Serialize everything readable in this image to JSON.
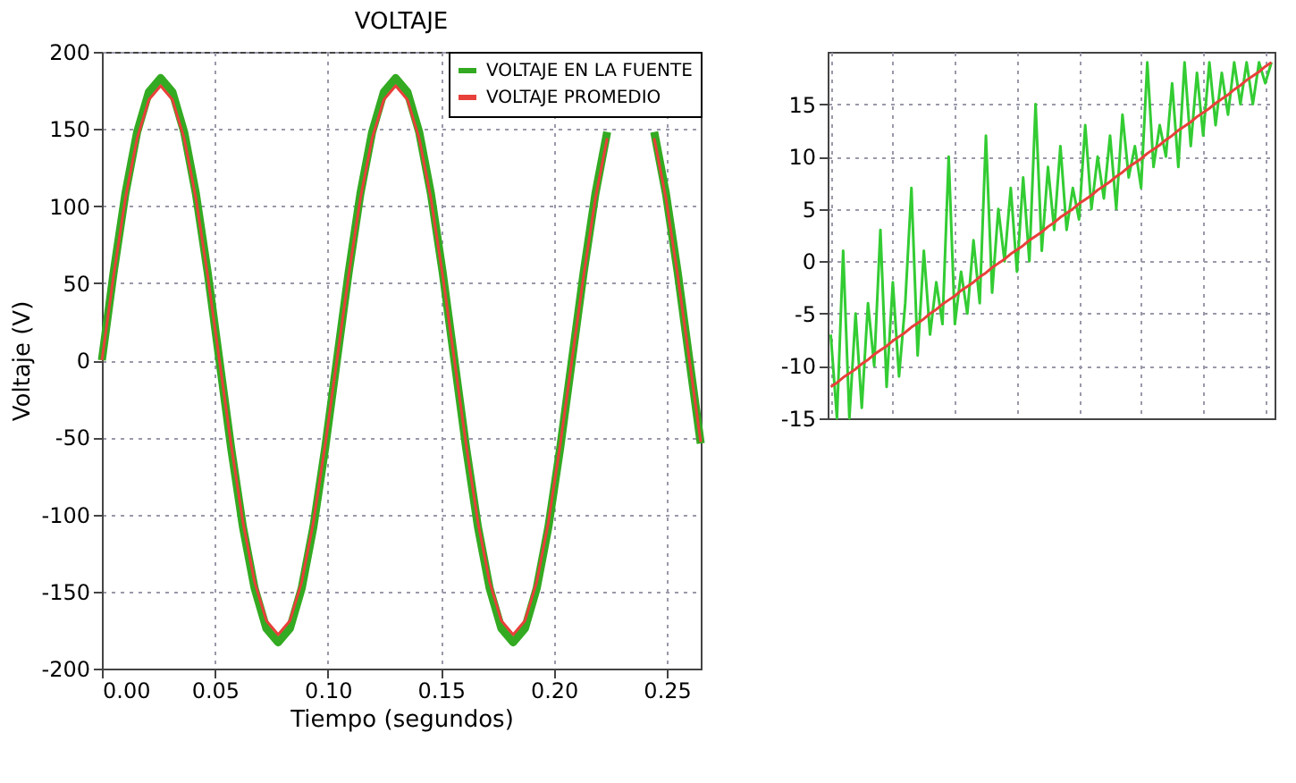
{
  "chart_data": [
    {
      "type": "line",
      "title": "VOLTAJE",
      "xlabel": "Tiempo (segundos)",
      "ylabel": "Voltaje (V)",
      "x": [
        0,
        0.0052,
        0.0104,
        0.0156,
        0.0208,
        0.026,
        0.0312,
        0.0364,
        0.0416,
        0.0468,
        0.052,
        0.0572,
        0.0624,
        0.0676,
        0.0728,
        0.078,
        0.0832,
        0.0884,
        0.0936,
        0.0988,
        0.104,
        0.1092,
        0.1144,
        0.1196,
        0.1248,
        0.13,
        0.1352,
        0.1404,
        0.1456,
        0.1508,
        0.156,
        0.1612,
        0.1664,
        0.1716,
        0.1768,
        0.182,
        0.1872,
        0.1924,
        0.1976,
        0.2028,
        0.208,
        0.2132,
        0.2184,
        0.2236,
        0.2288,
        0.234,
        0.2392,
        0.2444,
        0.2496,
        0.2548,
        0.26,
        0.265
      ],
      "series": [
        {
          "name": "VOLTAJE EN LA FUENTE",
          "color": "#33aa22",
          "values": [
            0,
            57,
            108,
            148,
            174,
            183,
            174,
            148,
            108,
            57,
            0,
            -57,
            -108,
            -148,
            -174,
            -183,
            -174,
            -148,
            -108,
            -57,
            0,
            57,
            108,
            148,
            174,
            183,
            174,
            148,
            108,
            57,
            0,
            -57,
            -108,
            -148,
            -174,
            -183,
            -174,
            -148,
            -108,
            -57,
            0,
            57,
            108,
            148,
            null,
            null,
            null,
            148,
            108,
            57,
            0,
            -54
          ]
        },
        {
          "name": "VOLTAJE PROMEDIO",
          "color": "#e8403a",
          "values": [
            0,
            55,
            105,
            144,
            169,
            178,
            169,
            144,
            105,
            55,
            0,
            -55,
            -105,
            -144,
            -169,
            -178,
            -169,
            -144,
            -105,
            -55,
            0,
            55,
            105,
            144,
            169,
            178,
            169,
            144,
            105,
            55,
            0,
            -55,
            -105,
            -144,
            -169,
            -178,
            -169,
            -144,
            -105,
            -55,
            0,
            55,
            105,
            144,
            null,
            null,
            null,
            144,
            105,
            55,
            0,
            -53
          ]
        }
      ],
      "xlim": [
        0,
        0.265
      ],
      "xticks": [
        {
          "value": 0,
          "label": "0.00"
        },
        {
          "value": 0.05,
          "label": "0.05"
        },
        {
          "value": 0.1,
          "label": "0.10"
        },
        {
          "value": 0.15,
          "label": "0.15"
        },
        {
          "value": 0.2,
          "label": "0.20"
        },
        {
          "value": 0.25,
          "label": "0.25"
        }
      ],
      "ylim": [
        -200,
        200
      ],
      "yticks": [
        -200,
        -150,
        -100,
        -50,
        0,
        50,
        100,
        150,
        200
      ],
      "grid": true,
      "legend": "top right",
      "line_style": "solid",
      "marker": "none"
    },
    {
      "type": "line",
      "categories": [
        null,
        null,
        null,
        null,
        null,
        null,
        null,
        null,
        null,
        null,
        null,
        null,
        null,
        null,
        null,
        null,
        null,
        null,
        null,
        null,
        null,
        null,
        null,
        null,
        null,
        null,
        null,
        null,
        null,
        null,
        null,
        null,
        null,
        null,
        null,
        null,
        null,
        null,
        null,
        null,
        null,
        null,
        null,
        null,
        null,
        null,
        null,
        null,
        null,
        null,
        null,
        null,
        null,
        null,
        null,
        null,
        null,
        null,
        null,
        null,
        null,
        null,
        null,
        null,
        null,
        null,
        null,
        null,
        null,
        null,
        null,
        null
      ],
      "series": [
        {
          "color": "#33cc33",
          "values": [
            -7,
            -15,
            1,
            -15,
            -5,
            -14,
            -4,
            -10,
            3,
            -12,
            -2,
            -11,
            -4,
            7,
            -9,
            1,
            -7,
            -2,
            -6,
            10,
            -6,
            -1,
            -5,
            2,
            -4,
            12,
            -3,
            5,
            0,
            7,
            -1,
            8,
            0,
            15,
            1,
            9,
            3,
            11,
            3,
            7,
            4,
            13,
            5,
            10,
            6,
            12,
            5,
            14,
            8,
            11,
            7,
            19,
            9,
            13,
            10,
            17,
            9,
            19,
            11,
            18,
            12,
            19,
            13,
            18,
            14,
            19,
            15,
            19,
            15,
            19,
            17,
            19
          ]
        },
        {
          "color": "#e8403a",
          "values": [
            -12,
            -11.6,
            -11.1,
            -10.7,
            -10.3,
            -9.8,
            -9.4,
            -8.9,
            -8.5,
            -8.1,
            -7.6,
            -7.2,
            -6.8,
            -6.3,
            -5.9,
            -5.5,
            -5.0,
            -4.6,
            -4.1,
            -3.7,
            -3.3,
            -2.8,
            -2.4,
            -2.0,
            -1.5,
            -1.1,
            -0.6,
            -0.2,
            0.2,
            0.7,
            1.1,
            1.5,
            2.0,
            2.4,
            2.8,
            3.3,
            3.7,
            4.2,
            4.6,
            5.0,
            5.5,
            5.9,
            6.3,
            6.8,
            7.2,
            7.6,
            8.1,
            8.5,
            9.0,
            9.4,
            9.8,
            10.3,
            10.7,
            11.1,
            11.6,
            12.0,
            12.5,
            12.9,
            13.3,
            13.8,
            14.2,
            14.6,
            15.1,
            15.5,
            15.9,
            16.4,
            16.8,
            17.3,
            17.7,
            18.1,
            18.6,
            19.0
          ]
        }
      ],
      "ylim": [
        -15,
        20
      ],
      "yticks": [
        -15,
        -10,
        -5,
        0,
        5,
        10,
        15
      ],
      "grid": true,
      "tick_labels": "y",
      "line_style": "solid",
      "marker": "none"
    }
  ]
}
